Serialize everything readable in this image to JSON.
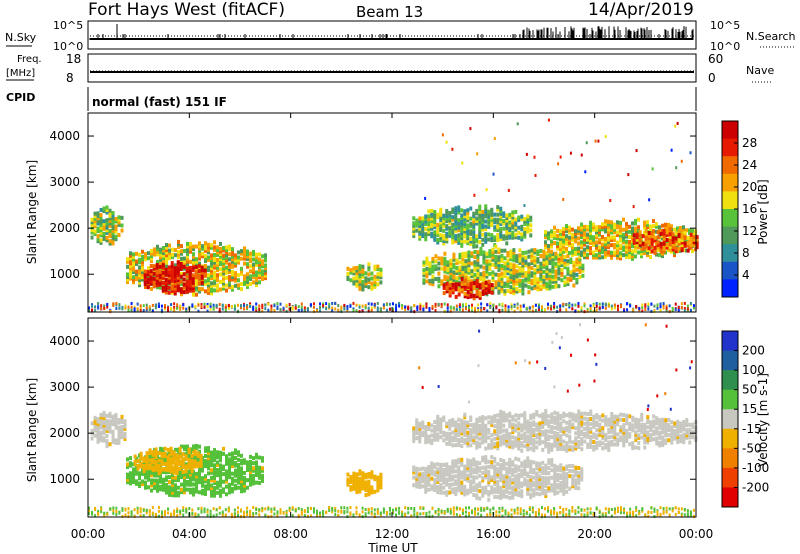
{
  "header": {
    "title": "Fort Hays West (fitACF)",
    "beam": "Beam 13",
    "date": "14/Apr/2019"
  },
  "mode_text": "normal (fast) 151 IF",
  "labels": {
    "nsky": "N.Sky",
    "nsearch": "N.Search",
    "freq": "Freq.",
    "freq_unit": "[MHz]",
    "nave": "Nave",
    "cpid": "CPID",
    "nsky_ticks": [
      "10^5",
      "10^0"
    ],
    "nsearch_ticks": [
      "10^5",
      "10^0"
    ],
    "freq_ticks": [
      "18",
      "8"
    ],
    "nave_ticks": [
      "60",
      "0"
    ]
  },
  "chart_data": [
    {
      "type": "heatmap",
      "name": "power",
      "ylabel": "Slant Range [km]",
      "xlim": [
        0,
        24
      ],
      "ylim": [
        180,
        4500
      ],
      "y_ticks": [
        "1000",
        "2000",
        "3000",
        "4000"
      ],
      "colorbar": {
        "label": "Power [dB]",
        "ticks": [
          "4",
          "8",
          "12",
          "16",
          "20",
          "24",
          "28"
        ],
        "colors": [
          "#0022ff",
          "#1a55c8",
          "#2f8f9a",
          "#4f9a5a",
          "#58c23a",
          "#f0e010",
          "#f7a000",
          "#f06a00",
          "#e51a00",
          "#cc0000"
        ]
      },
      "regions": [
        {
          "t0": 0.1,
          "t1": 1.3,
          "r0": 1700,
          "r1": 2500,
          "level": 0.45
        },
        {
          "t0": 1.5,
          "t1": 7.0,
          "r0": 650,
          "r1": 1750,
          "level": 0.55
        },
        {
          "t0": 2.2,
          "t1": 4.6,
          "r0": 680,
          "r1": 1300,
          "level": 0.95
        },
        {
          "t0": 10.2,
          "t1": 11.6,
          "r0": 750,
          "r1": 1300,
          "level": 0.5
        },
        {
          "t0": 12.8,
          "t1": 17.5,
          "r0": 1700,
          "r1": 2500,
          "level": 0.4
        },
        {
          "t0": 13.2,
          "t1": 19.5,
          "r0": 650,
          "r1": 1600,
          "level": 0.5
        },
        {
          "t0": 14.0,
          "t1": 16.0,
          "r0": 550,
          "r1": 900,
          "level": 0.9
        },
        {
          "t0": 18.0,
          "t1": 24.0,
          "r0": 1400,
          "r1": 2200,
          "level": 0.55
        },
        {
          "t0": 21.5,
          "t1": 24.0,
          "r0": 1550,
          "r1": 2000,
          "level": 0.8
        }
      ]
    },
    {
      "type": "heatmap",
      "name": "velocity",
      "ylabel": "Slant Range [km]",
      "xlabel": "Time UT",
      "xlim": [
        0,
        24
      ],
      "ylim": [
        180,
        4500
      ],
      "y_ticks": [
        "1000",
        "2000",
        "3000",
        "4000"
      ],
      "x_ticks": [
        "00:00",
        "04:00",
        "08:00",
        "12:00",
        "16:00",
        "20:00",
        "00:00"
      ],
      "x_tick_hours": [
        0,
        4,
        8,
        12,
        16,
        20,
        24
      ],
      "colorbar": {
        "label": "Velocity [m s-1]",
        "ticks": [
          "200",
          "100",
          "50",
          "15",
          "-15",
          "-50",
          "-100",
          "-200"
        ],
        "colors": [
          "#2233cc",
          "#1f5f9f",
          "#2e8f4f",
          "#55c03a",
          "#c8c8c0",
          "#f0b000",
          "#f08000",
          "#f04000",
          "#e00000"
        ]
      },
      "regions": [
        {
          "t0": 0.1,
          "t1": 1.5,
          "r0": 1800,
          "r1": 2500,
          "level": "ground"
        },
        {
          "t0": 1.5,
          "t1": 6.9,
          "r0": 700,
          "r1": 1750,
          "level": "green"
        },
        {
          "t0": 1.8,
          "t1": 4.5,
          "r0": 1200,
          "r1": 1700,
          "level": "orange"
        },
        {
          "t0": 10.2,
          "t1": 11.6,
          "r0": 750,
          "r1": 1250,
          "level": "orange"
        },
        {
          "t0": 12.8,
          "t1": 24.0,
          "r0": 1700,
          "r1": 2500,
          "level": "ground"
        },
        {
          "t0": 12.8,
          "t1": 19.5,
          "r0": 650,
          "r1": 1500,
          "level": "ground"
        }
      ]
    }
  ]
}
